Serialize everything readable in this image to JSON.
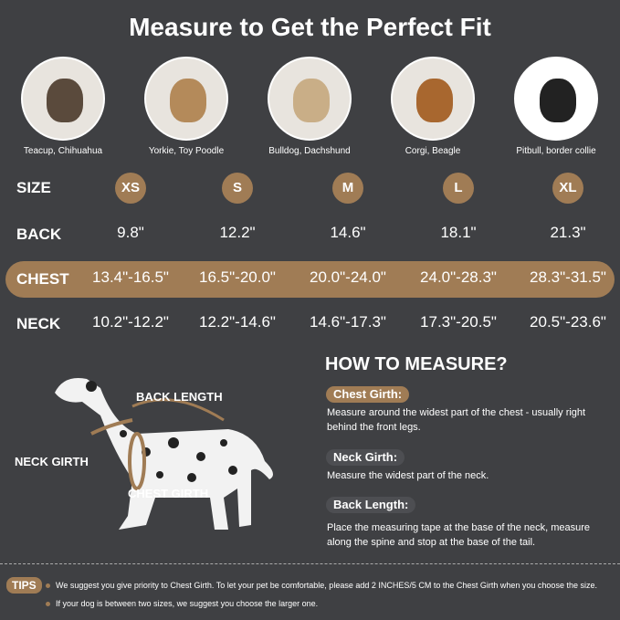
{
  "title": "Measure to Get the Perfect Fit",
  "colors": {
    "background": "#3f4043",
    "accent": "#a07c55"
  },
  "dogs": [
    {
      "label": "Teacup, Chihuahua"
    },
    {
      "label": "Yorkie, Toy Poodle"
    },
    {
      "label": "Bulldog, Dachshund"
    },
    {
      "label": "Corgi, Beagle"
    },
    {
      "label": "Pitbull, border collie"
    }
  ],
  "table": {
    "size": {
      "header": "SIZE",
      "values": [
        "XS",
        "S",
        "M",
        "L",
        "XL"
      ]
    },
    "back": {
      "header": "BACK",
      "values": [
        "9.8\"",
        "12.2\"",
        "14.6\"",
        "18.1\"",
        "21.3\""
      ]
    },
    "chest": {
      "header": "CHEST",
      "values": [
        "13.4\"-16.5\"",
        "16.5\"-20.0\"",
        "20.0\"-24.0\"",
        "24.0\"-28.3\"",
        "28.3\"-31.5\""
      ]
    },
    "neck": {
      "header": "NECK",
      "values": [
        "10.2\"-12.2\"",
        "12.2\"-14.6\"",
        "14.6\"-17.3\"",
        "17.3\"-20.5\"",
        "20.5\"-23.6\""
      ]
    }
  },
  "diagram": {
    "back_length": "BACK LENGTH",
    "neck_girth": "NECK GIRTH",
    "chest_girth": "CHEST GIRTH"
  },
  "how": {
    "title": "HOW TO MEASURE?",
    "chest_label": "Chest Girth:",
    "chest_desc": "Measure around the widest part of the chest - usually right behind the front legs.",
    "neck_label": "Neck Girth:",
    "neck_desc": "Measure the widest part of the neck.",
    "back_label": "Back Length:",
    "back_desc": "Place the measuring tape at the base of the neck, measure along the spine and stop at the base of the tail."
  },
  "tips": {
    "label": "TIPS",
    "items": [
      "We suggest you give priority to Chest Girth. To let your pet be comfortable, please add 2 INCHES/5 CM to the Chest Girth when you choose the size.",
      "If your dog is between two sizes, we suggest you choose the larger one."
    ]
  }
}
